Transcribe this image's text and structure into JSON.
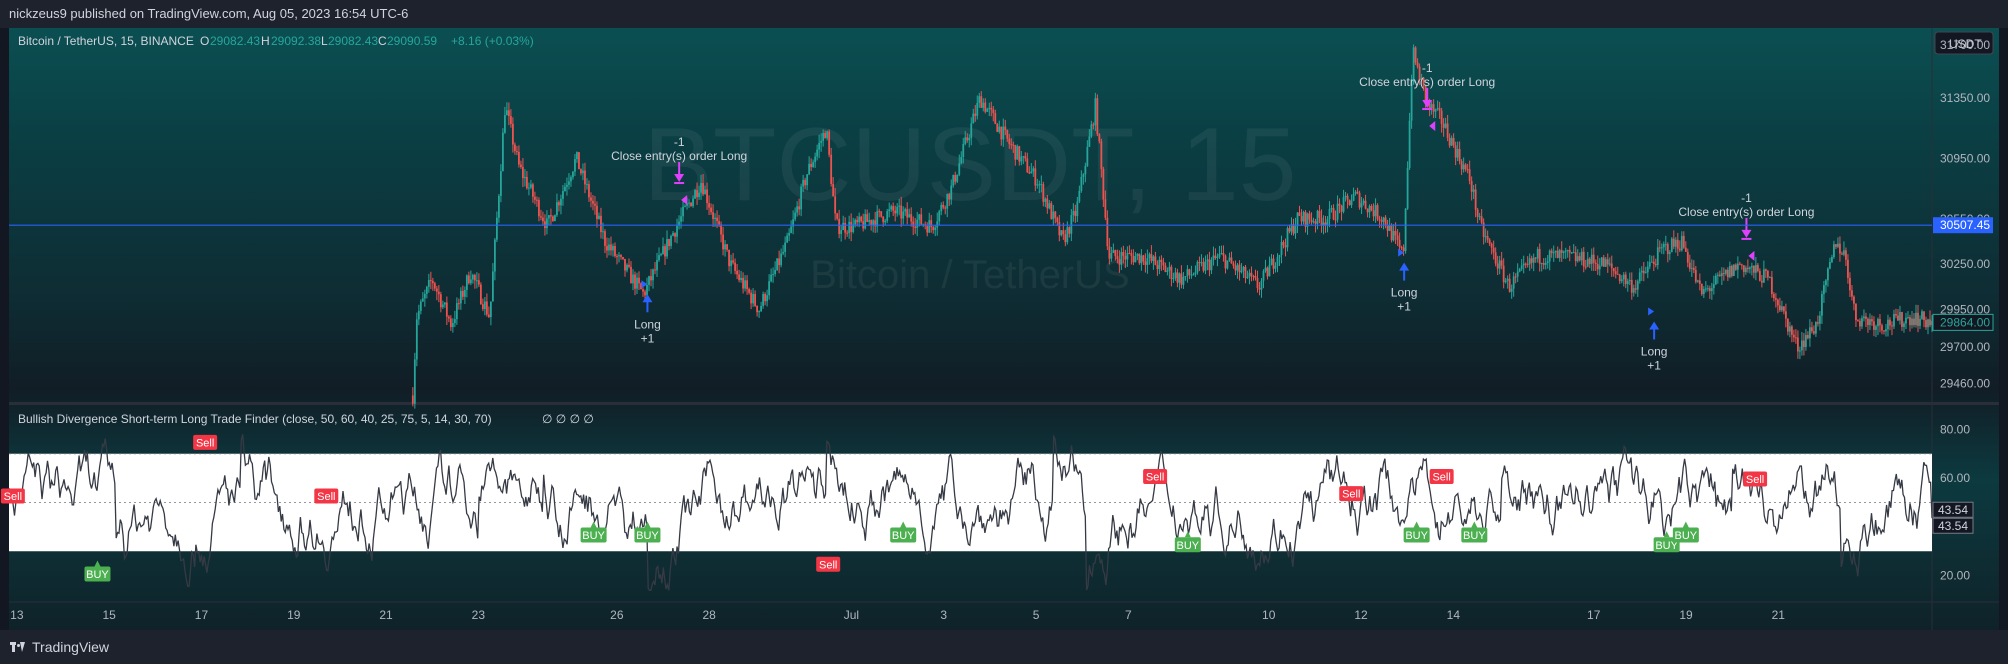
{
  "header": {
    "published": "nickzeus9 published on TradingView.com, Aug 05, 2023 16:54 UTC-6"
  },
  "footer": {
    "brand": "TradingView"
  },
  "colors": {
    "bullish": "#26a69a",
    "bearish": "#ef5350",
    "price_line": "#2962ff",
    "osc_line": "#363a45",
    "buy_label": "#4caf50",
    "sell_label": "#f23645",
    "close_marker": "#e040fb",
    "long_marker": "#2962ff"
  },
  "chart_data": [
    {
      "type": "candlestick",
      "symbol": "Bitcoin / TetherUS, 15, BINANCE",
      "watermark": "BTCUSDT, 15",
      "watermark_sub": "Bitcoin / TetherUS",
      "ohlc": {
        "o_label": "O",
        "o": "29082.43",
        "h_label": "H",
        "h": "29092.38",
        "l_label": "L",
        "l": "29082.43",
        "c_label": "C",
        "c": "29090.59",
        "change": "+8.16 (+0.03%)"
      },
      "currency": "USDT",
      "ylim": [
        29350,
        31800
      ],
      "y_ticks": [
        "31700.00",
        "31350.00",
        "30950.00",
        "30550.00",
        "30250.00",
        "29950.00",
        "29700.00",
        "29460.00"
      ],
      "price_line": {
        "value": 30507.45,
        "label": "30507.45"
      },
      "last_price": {
        "value": 29864.0,
        "label": "29864.00"
      },
      "x_ticks": [
        "13",
        "15",
        "17",
        "19",
        "21",
        "23",
        "26",
        "28",
        "Jul",
        "3",
        "5",
        "7",
        "10",
        "12",
        "14",
        "17",
        "19",
        "21"
      ],
      "price_path": [
        [
          0.21,
          29380
        ],
        [
          0.212,
          29900
        ],
        [
          0.22,
          30150
        ],
        [
          0.23,
          29850
        ],
        [
          0.24,
          30200
        ],
        [
          0.25,
          29900
        ],
        [
          0.258,
          31300
        ],
        [
          0.265,
          30900
        ],
        [
          0.28,
          30500
        ],
        [
          0.295,
          30950
        ],
        [
          0.31,
          30400
        ],
        [
          0.33,
          30050
        ],
        [
          0.345,
          30450
        ],
        [
          0.36,
          30800
        ],
        [
          0.375,
          30250
        ],
        [
          0.39,
          29950
        ],
        [
          0.405,
          30400
        ],
        [
          0.415,
          30850
        ],
        [
          0.425,
          31150
        ],
        [
          0.43,
          30500
        ],
        [
          0.44,
          30500
        ],
        [
          0.46,
          30600
        ],
        [
          0.48,
          30500
        ],
        [
          0.49,
          30750
        ],
        [
          0.505,
          31350
        ],
        [
          0.52,
          31050
        ],
        [
          0.535,
          30800
        ],
        [
          0.548,
          30400
        ],
        [
          0.555,
          30600
        ],
        [
          0.565,
          31300
        ],
        [
          0.572,
          30300
        ],
        [
          0.59,
          30300
        ],
        [
          0.61,
          30150
        ],
        [
          0.63,
          30300
        ],
        [
          0.65,
          30100
        ],
        [
          0.67,
          30550
        ],
        [
          0.685,
          30550
        ],
        [
          0.7,
          30700
        ],
        [
          0.715,
          30550
        ],
        [
          0.725,
          30300
        ],
        [
          0.73,
          31650
        ],
        [
          0.738,
          31300
        ],
        [
          0.745,
          31200
        ],
        [
          0.76,
          30800
        ],
        [
          0.765,
          30500
        ],
        [
          0.78,
          30100
        ],
        [
          0.795,
          30300
        ],
        [
          0.81,
          30300
        ],
        [
          0.83,
          30250
        ],
        [
          0.845,
          30100
        ],
        [
          0.86,
          30350
        ],
        [
          0.87,
          30400
        ],
        [
          0.88,
          30050
        ],
        [
          0.9,
          30250
        ],
        [
          0.915,
          30150
        ],
        [
          0.93,
          29700
        ],
        [
          0.94,
          29850
        ],
        [
          0.95,
          30400
        ],
        [
          0.955,
          30300
        ],
        [
          0.96,
          29900
        ],
        [
          0.975,
          29850
        ],
        [
          0.99,
          29900
        ],
        [
          1.0,
          29864
        ]
      ],
      "signals": [
        {
          "kind": "close",
          "x": 0.3485,
          "price": 30780,
          "qty": "-1",
          "text": "Close entry(s) order Long"
        },
        {
          "kind": "long",
          "x": 0.332,
          "price": 30050,
          "qty": "+1",
          "text": "Long"
        },
        {
          "kind": "close",
          "x": 0.7375,
          "price": 31270,
          "qty": "-1",
          "text": "Close entry(s) order Long"
        },
        {
          "kind": "long",
          "x": 0.7255,
          "price": 30260,
          "qty": "+1",
          "text": "Long"
        },
        {
          "kind": "close",
          "x": 0.9035,
          "price": 30410,
          "qty": "-1",
          "text": "Close entry(s) order Long"
        },
        {
          "kind": "long",
          "x": 0.8555,
          "price": 29870,
          "qty": "+1",
          "text": "Long"
        }
      ]
    },
    {
      "type": "line",
      "title": "Bullish Divergence Short-term Long Trade Finder (close, 50, 60, 40, 25, 75, 5, 14, 30, 70)",
      "status": "∅ ∅ ∅ ∅",
      "ylim": [
        10,
        90
      ],
      "y_ticks": [
        "80.00",
        "60.00",
        "20.00"
      ],
      "band": [
        30,
        70
      ],
      "mid_line": 50,
      "last_values": [
        "43.54",
        "43.54"
      ],
      "labels": [
        {
          "text": "Sell",
          "kind": "sell",
          "x": 0.002,
          "y": 50
        },
        {
          "text": "BUY",
          "kind": "buy",
          "x": 0.046,
          "y": 18
        },
        {
          "text": "Sell",
          "kind": "sell",
          "x": 0.102,
          "y": 72
        },
        {
          "text": "Sell",
          "kind": "sell",
          "x": 0.165,
          "y": 50
        },
        {
          "text": "BUY",
          "kind": "buy",
          "x": 0.304,
          "y": 34
        },
        {
          "text": "BUY",
          "kind": "buy",
          "x": 0.332,
          "y": 34
        },
        {
          "text": "Sell",
          "kind": "sell",
          "x": 0.426,
          "y": 22
        },
        {
          "text": "BUY",
          "kind": "buy",
          "x": 0.465,
          "y": 34
        },
        {
          "text": "Sell",
          "kind": "sell",
          "x": 0.596,
          "y": 58
        },
        {
          "text": "BUY",
          "kind": "buy",
          "x": 0.613,
          "y": 30
        },
        {
          "text": "Sell",
          "kind": "sell",
          "x": 0.698,
          "y": 51
        },
        {
          "text": "BUY",
          "kind": "buy",
          "x": 0.732,
          "y": 34
        },
        {
          "text": "Sell",
          "kind": "sell",
          "x": 0.745,
          "y": 58
        },
        {
          "text": "BUY",
          "kind": "buy",
          "x": 0.762,
          "y": 34
        },
        {
          "text": "BUY",
          "kind": "buy",
          "x": 0.862,
          "y": 30
        },
        {
          "text": "BUY",
          "kind": "buy",
          "x": 0.872,
          "y": 34
        },
        {
          "text": "Sell",
          "kind": "sell",
          "x": 0.908,
          "y": 57
        }
      ]
    }
  ]
}
